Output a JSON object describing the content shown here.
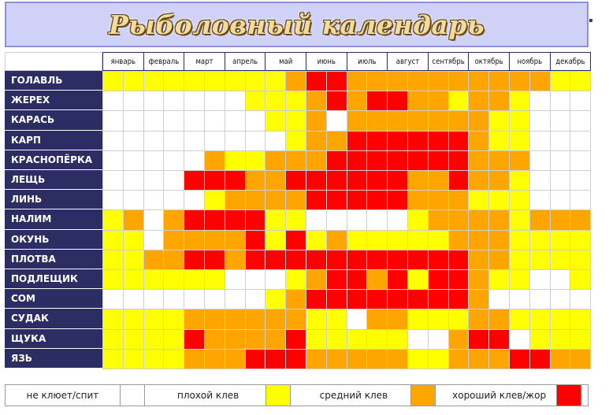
{
  "title": "Рыболовный календарь",
  "chart_data": {
    "type": "heatmap",
    "title": "Рыболовный календарь",
    "months": [
      "январь",
      "февраль",
      "март",
      "апрель",
      "май",
      "июнь",
      "июль",
      "август",
      "сентябрь",
      "октябрь",
      "ноябрь",
      "декабрь"
    ],
    "fish": [
      "ГОЛАВЛЬ",
      "ЖЕРЕХ",
      "КАРАСЬ",
      "КАРП",
      "КРАСНОПЁРКА",
      "ЛЕЩЬ",
      "ЛИНЬ",
      "НАЛИМ",
      "ОКУНЬ",
      "ПЛОТВА",
      "ПОДЛЕЩИК",
      "СОМ",
      "СУДАК",
      "ЩУКА",
      "ЯЗЬ"
    ],
    "periods_per_month": 2,
    "levels": [
      {
        "value": 0,
        "label": "не клюет/спит",
        "color": "#ffffff"
      },
      {
        "value": 1,
        "label": "плохой клев",
        "color": "#ffff00"
      },
      {
        "value": 2,
        "label": "средний клев",
        "color": "#ffa500"
      },
      {
        "value": 3,
        "label": "хороший клев/жор",
        "color": "#ff0000"
      }
    ],
    "values": [
      [
        1,
        1,
        1,
        1,
        1,
        1,
        1,
        1,
        1,
        2,
        3,
        3,
        2,
        2,
        2,
        2,
        2,
        2,
        2,
        2,
        2,
        2,
        1,
        1
      ],
      [
        0,
        0,
        0,
        0,
        0,
        0,
        0,
        1,
        1,
        1,
        2,
        3,
        2,
        3,
        3,
        2,
        2,
        1,
        2,
        2,
        1,
        0,
        0,
        0
      ],
      [
        0,
        0,
        0,
        0,
        0,
        0,
        0,
        0,
        1,
        1,
        2,
        0,
        2,
        2,
        2,
        2,
        2,
        2,
        2,
        1,
        1,
        0,
        0,
        0
      ],
      [
        0,
        0,
        0,
        0,
        0,
        0,
        0,
        0,
        0,
        1,
        2,
        2,
        3,
        3,
        3,
        3,
        3,
        3,
        2,
        1,
        1,
        0,
        0,
        0
      ],
      [
        0,
        0,
        0,
        0,
        0,
        2,
        1,
        1,
        2,
        2,
        2,
        3,
        3,
        3,
        3,
        3,
        3,
        3,
        2,
        2,
        2,
        0,
        0,
        0
      ],
      [
        0,
        0,
        0,
        0,
        3,
        3,
        3,
        2,
        2,
        3,
        3,
        3,
        3,
        3,
        3,
        2,
        2,
        3,
        2,
        2,
        1,
        0,
        0,
        0
      ],
      [
        0,
        0,
        0,
        0,
        0,
        1,
        2,
        2,
        2,
        2,
        3,
        3,
        3,
        3,
        3,
        2,
        2,
        2,
        1,
        1,
        1,
        0,
        0,
        0
      ],
      [
        1,
        2,
        0,
        2,
        3,
        3,
        3,
        3,
        1,
        1,
        0,
        0,
        0,
        0,
        0,
        1,
        2,
        2,
        2,
        2,
        1,
        2,
        2,
        2
      ],
      [
        1,
        1,
        0,
        2,
        2,
        2,
        2,
        3,
        1,
        3,
        1,
        2,
        1,
        1,
        1,
        1,
        1,
        2,
        2,
        2,
        1,
        1,
        1,
        1
      ],
      [
        1,
        1,
        2,
        2,
        3,
        3,
        2,
        3,
        3,
        3,
        3,
        3,
        3,
        3,
        3,
        3,
        3,
        3,
        2,
        2,
        1,
        1,
        1,
        1
      ],
      [
        1,
        1,
        1,
        1,
        1,
        1,
        0,
        0,
        0,
        1,
        2,
        3,
        3,
        2,
        3,
        1,
        3,
        3,
        2,
        1,
        1,
        0,
        0,
        1
      ],
      [
        0,
        0,
        0,
        0,
        0,
        0,
        0,
        0,
        1,
        2,
        3,
        3,
        3,
        3,
        3,
        3,
        3,
        3,
        2,
        0,
        0,
        0,
        0,
        0
      ],
      [
        1,
        1,
        1,
        1,
        2,
        2,
        2,
        2,
        2,
        2,
        1,
        1,
        0,
        2,
        2,
        1,
        1,
        1,
        2,
        2,
        1,
        1,
        1,
        1
      ],
      [
        1,
        1,
        1,
        1,
        3,
        2,
        2,
        2,
        2,
        3,
        1,
        1,
        1,
        1,
        1,
        0,
        0,
        2,
        3,
        3,
        0,
        1,
        1,
        1
      ],
      [
        1,
        1,
        1,
        1,
        2,
        2,
        2,
        3,
        3,
        3,
        2,
        2,
        2,
        2,
        2,
        1,
        1,
        2,
        2,
        2,
        3,
        3,
        2,
        2
      ]
    ]
  },
  "legend": [
    {
      "label": "не клюет/спит",
      "color": "#ffffff"
    },
    {
      "label": "плохой клев",
      "color": "#ffff00"
    },
    {
      "label": "средний клев",
      "color": "#ffa500"
    },
    {
      "label": "хороший клев/жор",
      "color": "#ff0000"
    }
  ]
}
